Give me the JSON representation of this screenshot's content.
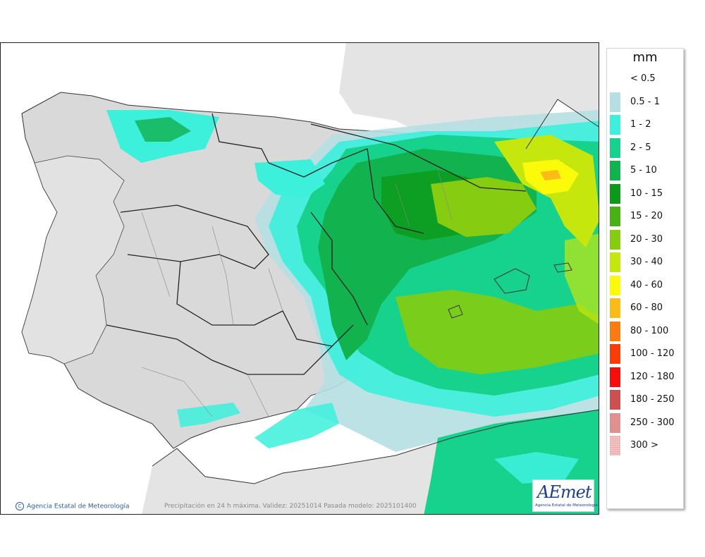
{
  "legend": {
    "unit": "mm",
    "items": [
      {
        "label": "< 0.5",
        "color": "#ffffff"
      },
      {
        "label": "0.5 - 1",
        "color": "#b5dfe3"
      },
      {
        "label": "1 - 2",
        "color": "#3cf0dc"
      },
      {
        "label": "2 - 5",
        "color": "#17d28c"
      },
      {
        "label": "5 - 10",
        "color": "#12b24e"
      },
      {
        "label": "10 - 15",
        "color": "#0c9a1a"
      },
      {
        "label": "15 - 20",
        "color": "#46b214"
      },
      {
        "label": "20 - 30",
        "color": "#86cc10"
      },
      {
        "label": "30 - 40",
        "color": "#c5e70e"
      },
      {
        "label": "40 - 60",
        "color": "#fafa0a"
      },
      {
        "label": "60 - 80",
        "color": "#fbbc18"
      },
      {
        "label": "80 - 100",
        "color": "#fb7a12"
      },
      {
        "label": "100 - 120",
        "color": "#fb3c0a"
      },
      {
        "label": "120 - 180",
        "color": "#f90c0c"
      },
      {
        "label": "180 - 250",
        "color": "#cc5050"
      },
      {
        "label": "250 - 300",
        "color": "#e09090"
      },
      {
        "label": "300 >",
        "color": "#f4c8c8"
      }
    ]
  },
  "footer": {
    "credit": "Agencia Estatal de Meteorología",
    "caption": "Precipitación en 24 h máxima. Validez: 20251014 Pasada modelo: 2025101400"
  },
  "logo": {
    "text": "AEmet",
    "subtitle": "Agencia Estatal de Meteorología"
  },
  "colors": {
    "land": "#dcdcdc",
    "sea": "#ffffff",
    "border": "#222222"
  }
}
